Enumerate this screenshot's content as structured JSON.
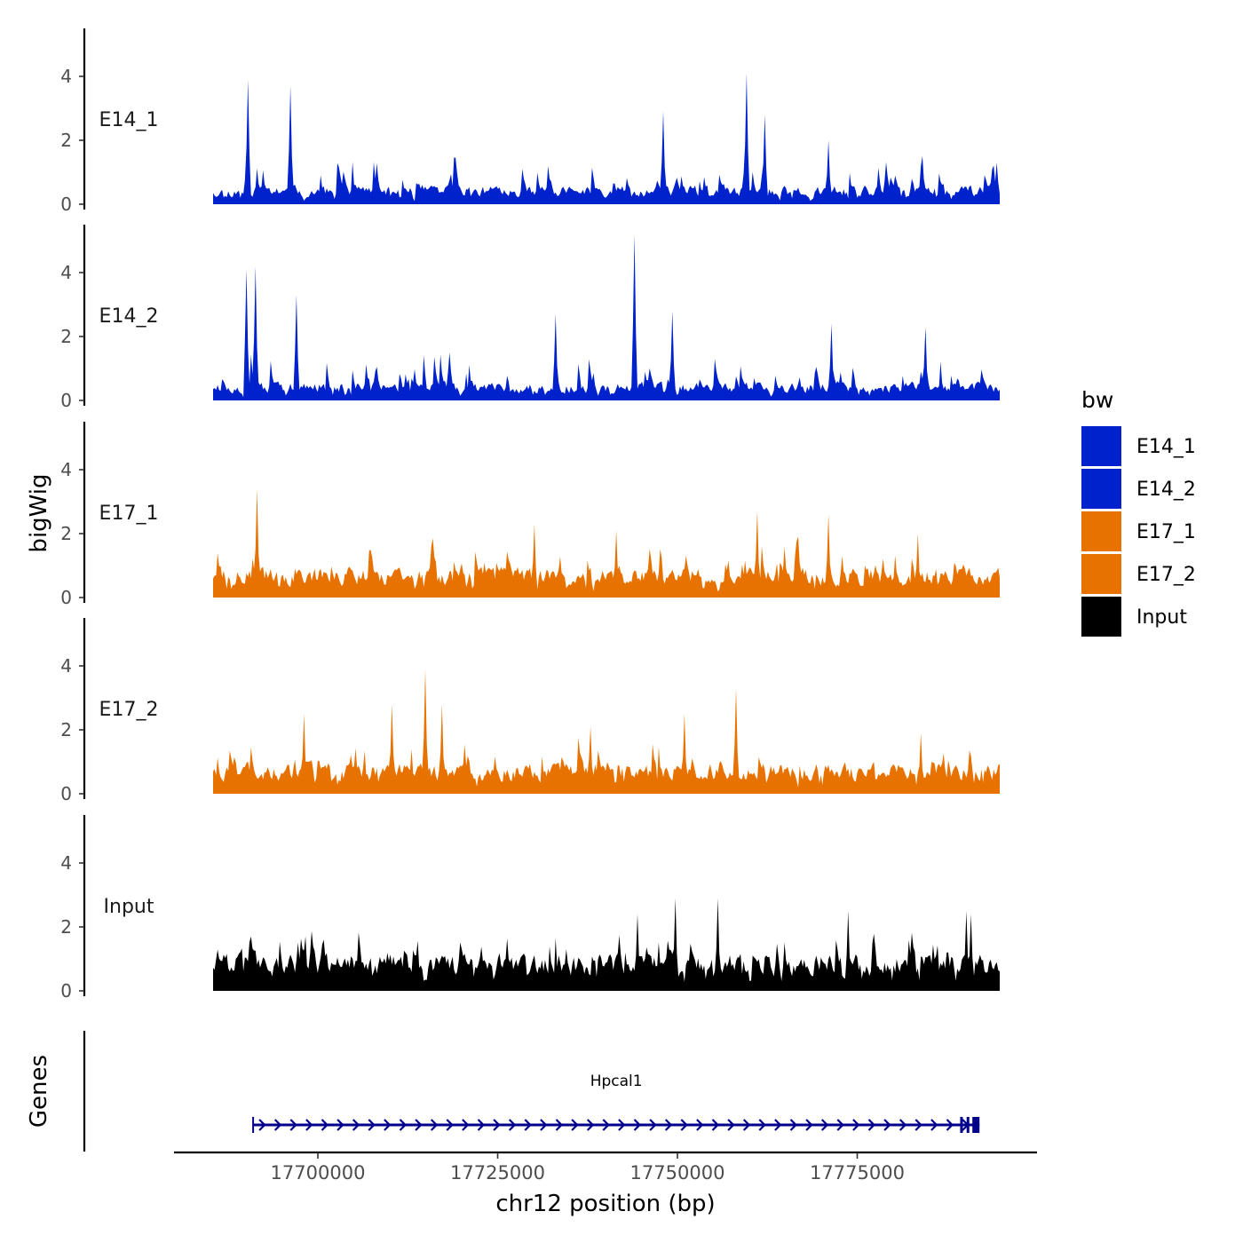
{
  "chart_data": {
    "type": "area",
    "ylabel": "bigWig",
    "xlabel": "chr12 position (bp)",
    "ylim": [
      0,
      5.5
    ],
    "yticks": [
      0,
      2,
      4
    ],
    "xlim": [
      17680000,
      17800000
    ],
    "xticks": [
      17700000,
      17725000,
      17750000,
      17775000
    ],
    "tracks": [
      {
        "name": "E14_1",
        "color": "#0022CC",
        "seed": 11,
        "base": 0.45,
        "spikes": [
          [
            17690300,
            3.9
          ],
          [
            17696200,
            3.7
          ],
          [
            17748000,
            2.9
          ],
          [
            17759700,
            4.1
          ],
          [
            17762100,
            2.8
          ],
          [
            17771000,
            2.0
          ]
        ]
      },
      {
        "name": "E14_2",
        "color": "#0022CC",
        "seed": 23,
        "base": 0.45,
        "spikes": [
          [
            17690000,
            4.1
          ],
          [
            17691400,
            4.2
          ],
          [
            17697000,
            3.3
          ],
          [
            17733100,
            2.7
          ],
          [
            17744000,
            5.2
          ],
          [
            17749200,
            2.8
          ],
          [
            17771500,
            2.4
          ],
          [
            17784500,
            2.3
          ]
        ]
      },
      {
        "name": "E17_1",
        "color": "#E87200",
        "seed": 37,
        "base": 0.75,
        "spikes": [
          [
            17691600,
            3.4
          ],
          [
            17730200,
            2.3
          ],
          [
            17741500,
            2.1
          ],
          [
            17761000,
            2.7
          ],
          [
            17770900,
            2.6
          ],
          [
            17783400,
            2.0
          ]
        ]
      },
      {
        "name": "E17_2",
        "color": "#E87200",
        "seed": 53,
        "base": 0.75,
        "spikes": [
          [
            17698000,
            2.5
          ],
          [
            17710200,
            2.8
          ],
          [
            17715000,
            3.9
          ],
          [
            17717300,
            2.8
          ],
          [
            17738000,
            2.1
          ],
          [
            17750900,
            2.5
          ],
          [
            17758200,
            3.3
          ],
          [
            17783900,
            1.9
          ]
        ]
      },
      {
        "name": "Input",
        "color": "#000000",
        "seed": 71,
        "base": 0.9,
        "spikes": [
          [
            17744500,
            2.4
          ],
          [
            17749800,
            2.9
          ],
          [
            17755700,
            2.9
          ],
          [
            17773700,
            2.5
          ],
          [
            17790200,
            2.5
          ],
          [
            17790900,
            2.4
          ]
        ]
      }
    ],
    "gene": {
      "label": "Hpcal1",
      "start": 17691000,
      "end": 17792000,
      "color": "#00008B"
    },
    "genes_label": "Genes",
    "legend": {
      "title": "bw",
      "position": "right",
      "entries": [
        {
          "label": "E14_1",
          "color": "#0022CC"
        },
        {
          "label": "E14_2",
          "color": "#0022CC"
        },
        {
          "label": "E17_1",
          "color": "#E87200"
        },
        {
          "label": "E17_2",
          "color": "#E87200"
        },
        {
          "label": "Input",
          "color": "#000000"
        }
      ]
    }
  }
}
